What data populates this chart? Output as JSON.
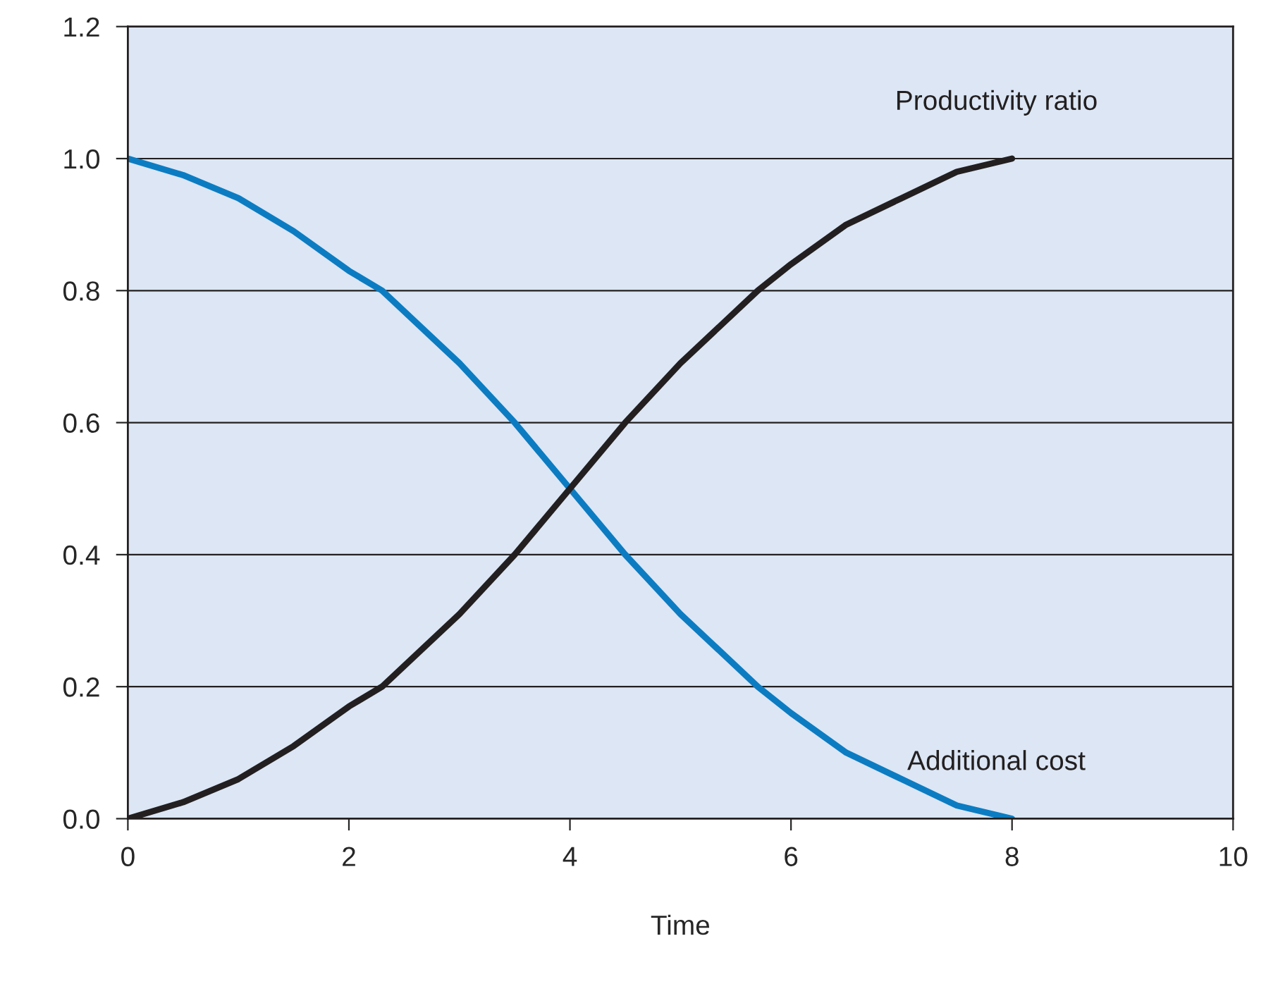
{
  "chart_data": {
    "type": "line",
    "xlabel": "Time",
    "x": [
      0,
      0.5,
      1,
      1.5,
      2,
      2.3,
      3,
      3.5,
      4,
      4.5,
      5,
      5.7,
      6,
      6.5,
      7,
      7.5,
      8
    ],
    "series": [
      {
        "name": "Additional cost",
        "color": "#0c7cc2",
        "values": [
          1.0,
          0.975,
          0.94,
          0.89,
          0.83,
          0.8,
          0.69,
          0.6,
          0.5,
          0.4,
          0.31,
          0.2,
          0.16,
          0.1,
          0.06,
          0.02,
          0.0
        ]
      },
      {
        "name": "Productivity ratio",
        "color": "#231f20",
        "values": [
          0.0,
          0.025,
          0.06,
          0.11,
          0.17,
          0.2,
          0.31,
          0.4,
          0.5,
          0.6,
          0.69,
          0.8,
          0.84,
          0.9,
          0.94,
          0.98,
          1.0
        ]
      }
    ],
    "xlim": [
      0,
      10
    ],
    "ylim": [
      0,
      1.2
    ],
    "xticks": [
      0,
      2,
      4,
      6,
      8,
      10
    ],
    "yticks": [
      {
        "value": 0,
        "label": "0.0"
      },
      {
        "value": 0.2,
        "label": "0.2"
      },
      {
        "value": 0.4,
        "label": "0.4"
      },
      {
        "value": 0.6,
        "label": "0.6"
      },
      {
        "value": 0.8,
        "label": "0.8"
      },
      {
        "value": 1.0,
        "label": "1.0"
      },
      {
        "value": 1.2,
        "label": "1.2"
      }
    ],
    "grid": "y",
    "marker": "none",
    "line_style": "solid",
    "legend": false
  }
}
